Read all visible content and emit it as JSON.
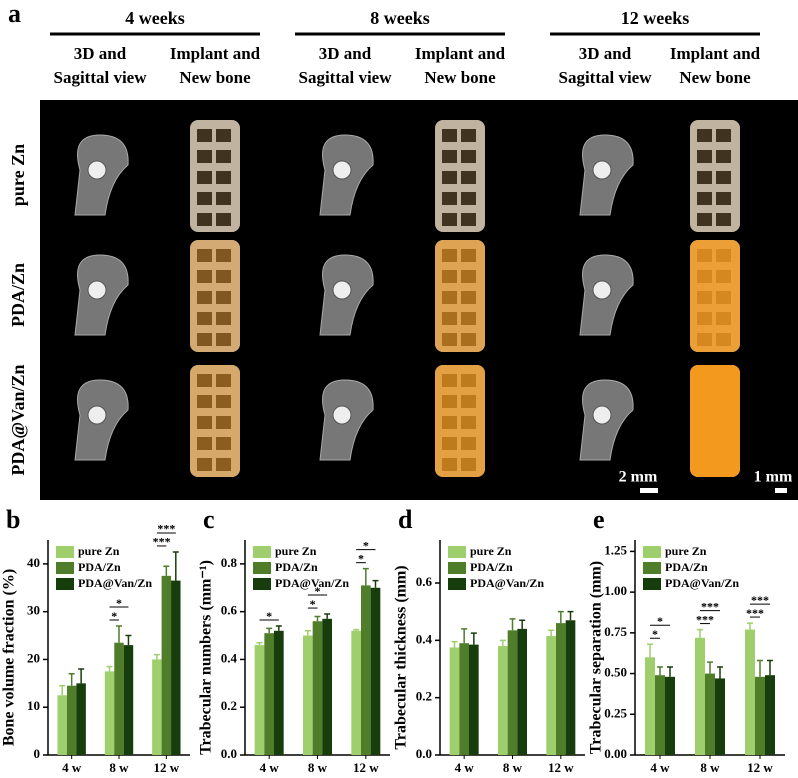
{
  "figure": {
    "label": "a",
    "groups": [
      {
        "title": "4 weeks",
        "columns": [
          [
            "3D and",
            "Sagittal view"
          ],
          [
            "Implant and",
            "New bone"
          ]
        ]
      },
      {
        "title": "8 weeks",
        "columns": [
          [
            "3D and",
            "Sagittal view"
          ],
          [
            "Implant and",
            "New bone"
          ]
        ]
      },
      {
        "title": "12 weeks",
        "columns": [
          [
            "3D and",
            "Sagittal view"
          ],
          [
            "Implant and",
            "New bone"
          ]
        ]
      }
    ],
    "rows": [
      "pure Zn",
      "PDA/Zn",
      "PDA@Van/Zn"
    ],
    "scale_bars": [
      "2 mm",
      "1 mm"
    ]
  },
  "chart_data": [
    {
      "type": "bar",
      "label": "b",
      "ylabel": "Bone volume fraction (%)",
      "categories": [
        "4 w",
        "8 w",
        "12 w"
      ],
      "series": [
        {
          "name": "pure Zn",
          "color": "#9fce6c",
          "values": [
            12.5,
            17.5,
            20
          ],
          "errors": [
            2,
            1,
            1
          ]
        },
        {
          "name": "PDA/Zn",
          "color": "#4f7d2a",
          "values": [
            14.5,
            23.5,
            37.5
          ],
          "errors": [
            2.5,
            3.5,
            2
          ]
        },
        {
          "name": "PDA@Van/Zn",
          "color": "#173d0c",
          "values": [
            15,
            23,
            36.5
          ],
          "errors": [
            3,
            2,
            6
          ]
        }
      ],
      "ylim": [
        0,
        45
      ],
      "yticks": [
        0,
        10,
        20,
        30,
        40
      ],
      "legend": "upper left",
      "annotations": [
        {
          "category": 1,
          "from": 0,
          "to": 1,
          "text": "*"
        },
        {
          "category": 1,
          "from": 0,
          "to": 2,
          "text": "*"
        },
        {
          "category": 2,
          "from": 0,
          "to": 1,
          "text": "***"
        },
        {
          "category": 2,
          "from": 0,
          "to": 2,
          "text": "***"
        }
      ]
    },
    {
      "type": "bar",
      "label": "c",
      "ylabel": "Trabecular numbers (mm⁻¹)",
      "categories": [
        "4 w",
        "8 w",
        "12 w"
      ],
      "series": [
        {
          "name": "pure Zn",
          "color": "#9fce6c",
          "values": [
            0.46,
            0.5,
            0.52
          ],
          "errors": [
            0.01,
            0.02,
            0.005
          ]
        },
        {
          "name": "PDA/Zn",
          "color": "#4f7d2a",
          "values": [
            0.51,
            0.56,
            0.71
          ],
          "errors": [
            0.02,
            0.02,
            0.07
          ]
        },
        {
          "name": "PDA@Van/Zn",
          "color": "#173d0c",
          "values": [
            0.52,
            0.57,
            0.7
          ],
          "errors": [
            0.02,
            0.02,
            0.03
          ]
        }
      ],
      "ylim": [
        0,
        0.9
      ],
      "yticks": [
        {
          "value": 0,
          "label": "0.0"
        },
        0.2,
        0.4,
        0.6,
        0.8
      ],
      "legend": "upper left",
      "annotations": [
        {
          "category": 0,
          "from": 0,
          "to": 2,
          "text": "*"
        },
        {
          "category": 1,
          "from": 0,
          "to": 1,
          "text": "*"
        },
        {
          "category": 1,
          "from": 0,
          "to": 2,
          "text": "*"
        },
        {
          "category": 2,
          "from": 0,
          "to": 1,
          "text": "*"
        },
        {
          "category": 2,
          "from": 0,
          "to": 2,
          "text": "*"
        }
      ]
    },
    {
      "type": "bar",
      "label": "d",
      "ylabel": "Trabecular thickness (mm)",
      "categories": [
        "4 w",
        "8 w",
        "12 w"
      ],
      "series": [
        {
          "name": "pure Zn",
          "color": "#9fce6c",
          "values": [
            0.375,
            0.38,
            0.415
          ],
          "errors": [
            0.02,
            0.02,
            0.02
          ]
        },
        {
          "name": "PDA/Zn",
          "color": "#4f7d2a",
          "values": [
            0.39,
            0.435,
            0.46
          ],
          "errors": [
            0.05,
            0.04,
            0.04
          ]
        },
        {
          "name": "PDA@Van/Zn",
          "color": "#173d0c",
          "values": [
            0.385,
            0.44,
            0.47
          ],
          "errors": [
            0.04,
            0.03,
            0.03
          ]
        }
      ],
      "ylim": [
        0,
        0.75
      ],
      "yticks": [
        {
          "value": 0,
          "label": "0.0"
        },
        0.2,
        0.4,
        0.6
      ],
      "legend": "upper left",
      "annotations": []
    },
    {
      "type": "bar",
      "label": "e",
      "ylabel": "Trabecular separation (mm)",
      "categories": [
        "4 w",
        "8 w",
        "12 w"
      ],
      "series": [
        {
          "name": "pure Zn",
          "color": "#9fce6c",
          "values": [
            0.6,
            0.72,
            0.77
          ],
          "errors": [
            0.08,
            0.05,
            0.04
          ]
        },
        {
          "name": "PDA/Zn",
          "color": "#4f7d2a",
          "values": [
            0.49,
            0.5,
            0.48
          ],
          "errors": [
            0.05,
            0.07,
            0.1
          ]
        },
        {
          "name": "PDA@Van/Zn",
          "color": "#173d0c",
          "values": [
            0.48,
            0.47,
            0.49
          ],
          "errors": [
            0.06,
            0.07,
            0.09
          ]
        }
      ],
      "ylim": [
        0,
        1.32
      ],
      "yticks": [
        {
          "value": 0,
          "label": "0.00"
        },
        {
          "value": 0.25,
          "label": "0.25"
        },
        {
          "value": 0.5,
          "label": "0.50"
        },
        {
          "value": 0.75,
          "label": "0.75"
        },
        {
          "value": 1,
          "label": "1.00"
        },
        {
          "value": 1.25,
          "label": "1.25"
        }
      ],
      "legend": "upper left",
      "annotations": [
        {
          "category": 0,
          "from": 0,
          "to": 1,
          "text": "*"
        },
        {
          "category": 0,
          "from": 0,
          "to": 2,
          "text": "*"
        },
        {
          "category": 1,
          "from": 0,
          "to": 1,
          "text": "***"
        },
        {
          "category": 1,
          "from": 0,
          "to": 2,
          "text": "***"
        },
        {
          "category": 2,
          "from": 0,
          "to": 1,
          "text": "***"
        },
        {
          "category": 2,
          "from": 0,
          "to": 2,
          "text": "***"
        }
      ]
    }
  ]
}
